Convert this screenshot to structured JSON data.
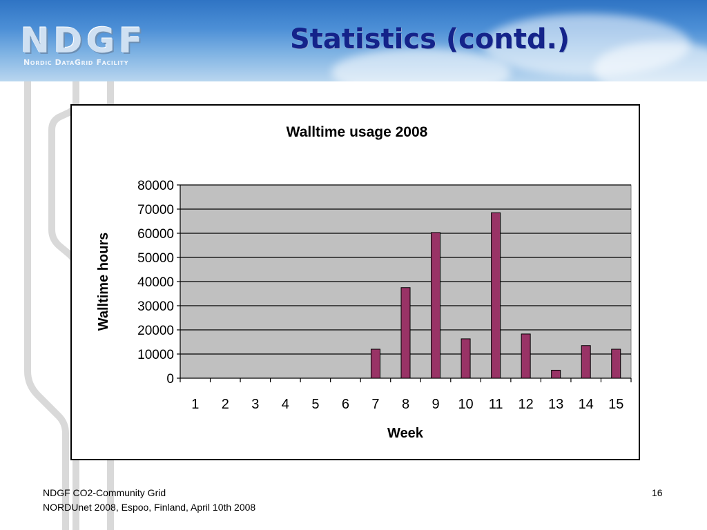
{
  "header": {
    "logo_text": "NDGF",
    "logo_subtitle": "Nordic DataGrid Facility",
    "title": "Statistics (contd.)"
  },
  "chart_data": {
    "type": "bar",
    "title": "Walltime usage 2008",
    "xlabel": "Week",
    "ylabel": "Walltime hours",
    "categories": [
      "1",
      "2",
      "3",
      "4",
      "5",
      "6",
      "7",
      "8",
      "9",
      "10",
      "11",
      "12",
      "13",
      "14",
      "15"
    ],
    "values": [
      0,
      0,
      0,
      0,
      0,
      0,
      12000,
      37500,
      60300,
      16300,
      68500,
      18300,
      3300,
      13500,
      12000
    ],
    "ylim": [
      0,
      80000
    ],
    "yticks": [
      "0",
      "10000",
      "20000",
      "30000",
      "40000",
      "50000",
      "60000",
      "70000",
      "80000"
    ],
    "grid": true,
    "legend": "none",
    "colors": {
      "bar": "#993366",
      "plot_bg": "#c0c0c0",
      "gridline": "#000000"
    }
  },
  "footer": {
    "line1": "NDGF CO2-Community Grid",
    "line2": "NORDUnet 2008, Espoo, Finland, April 10th 2008",
    "page": "16"
  }
}
